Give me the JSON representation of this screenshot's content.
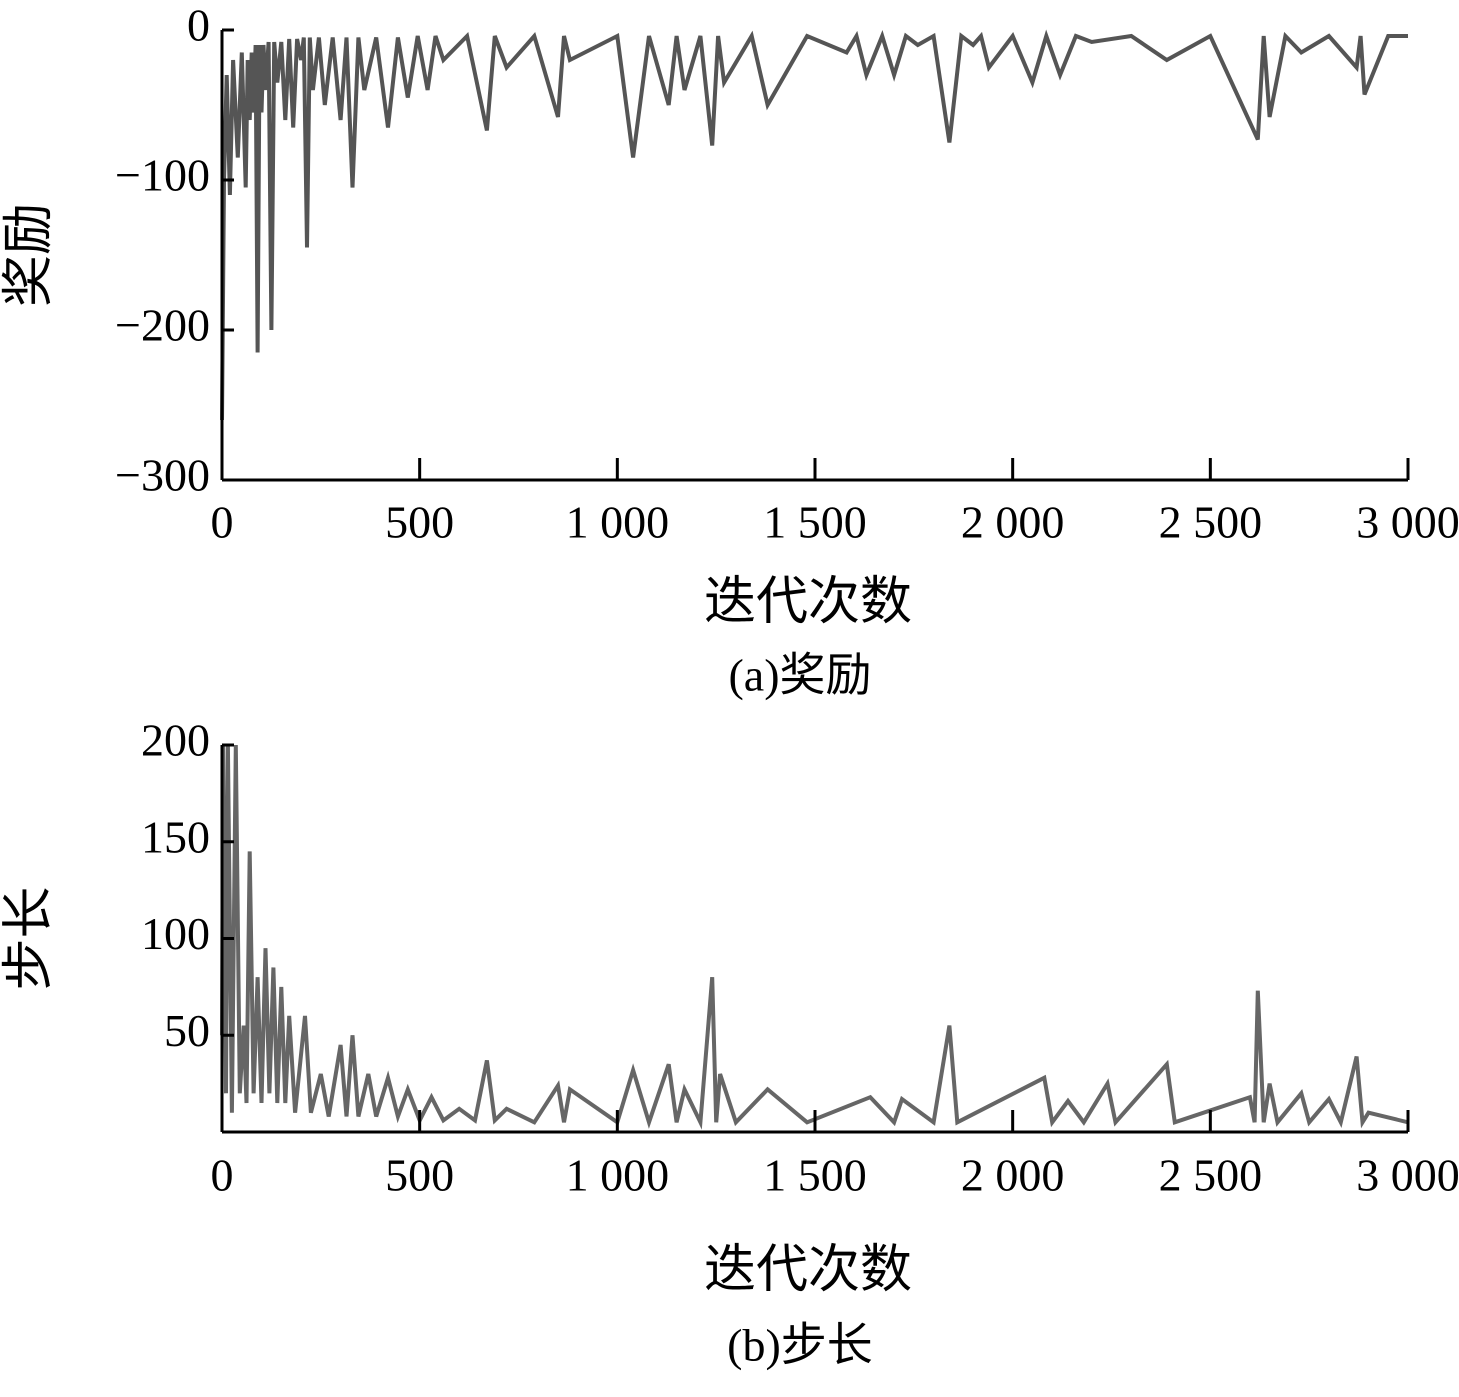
{
  "chart_data": [
    {
      "type": "line",
      "caption": "(a)奖励",
      "x_label": "迭代次数",
      "y_label": "奖励",
      "color": "#555555",
      "xlim": [
        0,
        3000
      ],
      "xticks": [
        0,
        500,
        {
          "value": 1000,
          "label": "1 000"
        },
        {
          "value": 1500,
          "label": "1 500"
        },
        {
          "value": 2000,
          "label": "2 000"
        },
        {
          "value": 2500,
          "label": "2 500"
        },
        {
          "value": 3000,
          "label": "3 000"
        }
      ],
      "ylim": [
        -300,
        0
      ],
      "yticks": [
        0,
        {
          "value": -100,
          "label": "−100"
        },
        {
          "value": -200,
          "label": "−200"
        },
        {
          "value": -300,
          "label": "−300"
        }
      ],
      "x": [
        0,
        5,
        12,
        20,
        28,
        40,
        50,
        60,
        65,
        70,
        75,
        80,
        85,
        90,
        95,
        100,
        105,
        110,
        118,
        125,
        132,
        140,
        150,
        160,
        170,
        180,
        190,
        200,
        207,
        215,
        222,
        230,
        245,
        260,
        280,
        300,
        315,
        330,
        345,
        360,
        390,
        420,
        445,
        470,
        495,
        520,
        540,
        560,
        620,
        670,
        690,
        720,
        790,
        850,
        865,
        880,
        1000,
        1040,
        1080,
        1130,
        1150,
        1170,
        1210,
        1240,
        1255,
        1270,
        1340,
        1380,
        1480,
        1580,
        1605,
        1630,
        1670,
        1700,
        1730,
        1760,
        1800,
        1840,
        1870,
        1900,
        1920,
        1940,
        2000,
        2050,
        2085,
        2120,
        2160,
        2200,
        2300,
        2390,
        2500,
        2620,
        2635,
        2650,
        2690,
        2730,
        2800,
        2870,
        2880,
        2890,
        2950,
        3000
      ],
      "values": [
        -260,
        -100,
        -30,
        -110,
        -20,
        -85,
        -15,
        -105,
        -20,
        -60,
        -15,
        -55,
        -10,
        -215,
        -10,
        -55,
        -10,
        -40,
        -8,
        -200,
        -8,
        -35,
        -8,
        -60,
        -6,
        -65,
        -6,
        -20,
        -5,
        -145,
        -5,
        -40,
        -5,
        -50,
        -5,
        -60,
        -5,
        -105,
        -5,
        -40,
        -5,
        -65,
        -5,
        -45,
        -4,
        -40,
        -4,
        -20,
        -4,
        -67,
        -4,
        -25,
        -4,
        -58,
        -4,
        -20,
        -4,
        -85,
        -4,
        -50,
        -4,
        -40,
        -4,
        -77,
        -4,
        -35,
        -4,
        -50,
        -4,
        -15,
        -4,
        -30,
        -4,
        -30,
        -4,
        -10,
        -4,
        -75,
        -4,
        -10,
        -4,
        -25,
        -4,
        -35,
        -4,
        -30,
        -4,
        -8,
        -4,
        -20,
        -4,
        -73,
        -4,
        -58,
        -4,
        -15,
        -4,
        -25,
        -4,
        -43,
        -4,
        -4
      ]
    },
    {
      "type": "line",
      "caption": "(b)步长",
      "x_label": "迭代次数",
      "y_label": "步长",
      "color": "#666666",
      "xlim": [
        0,
        3000
      ],
      "xticks": [
        0,
        500,
        {
          "value": 1000,
          "label": "1 000"
        },
        {
          "value": 1500,
          "label": "1 500"
        },
        {
          "value": 2000,
          "label": "2 000"
        },
        {
          "value": 2500,
          "label": "2 500"
        },
        {
          "value": 3000,
          "label": "3 000"
        }
      ],
      "ylim": [
        0,
        200
      ],
      "yticks": [
        50,
        100,
        150,
        200
      ],
      "x": [
        0,
        3,
        10,
        15,
        25,
        35,
        45,
        55,
        62,
        70,
        80,
        90,
        100,
        110,
        120,
        130,
        140,
        150,
        160,
        170,
        185,
        210,
        225,
        250,
        270,
        300,
        315,
        330,
        345,
        370,
        390,
        420,
        445,
        470,
        500,
        530,
        560,
        600,
        640,
        670,
        690,
        720,
        790,
        850,
        865,
        880,
        1000,
        1040,
        1080,
        1130,
        1150,
        1170,
        1210,
        1240,
        1250,
        1260,
        1300,
        1380,
        1480,
        1640,
        1700,
        1720,
        1800,
        1840,
        1860,
        2080,
        2100,
        2140,
        2180,
        2240,
        2260,
        2390,
        2410,
        2600,
        2612,
        2620,
        2635,
        2650,
        2670,
        2730,
        2750,
        2800,
        2830,
        2870,
        2885,
        2900,
        3000
      ],
      "values": [
        50,
        200,
        20,
        200,
        10,
        200,
        20,
        55,
        15,
        145,
        20,
        80,
        15,
        95,
        20,
        85,
        15,
        75,
        15,
        60,
        10,
        60,
        10,
        30,
        8,
        45,
        8,
        50,
        8,
        30,
        8,
        28,
        8,
        22,
        6,
        18,
        6,
        12,
        6,
        37,
        6,
        12,
        5,
        24,
        5,
        22,
        5,
        32,
        5,
        35,
        5,
        22,
        5,
        80,
        5,
        30,
        5,
        22,
        5,
        18,
        5,
        17,
        5,
        55,
        5,
        28,
        5,
        16,
        5,
        25,
        5,
        35,
        5,
        18,
        5,
        73,
        5,
        25,
        5,
        20,
        5,
        17,
        5,
        39,
        5,
        10,
        5
      ]
    }
  ]
}
